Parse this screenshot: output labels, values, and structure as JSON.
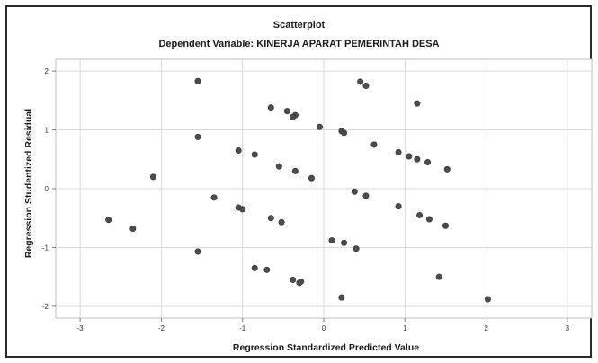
{
  "chart_data": {
    "type": "scatter",
    "title": "Scatterplot",
    "subtitle": "Dependent Variable: KINERJA APARAT PEMERINTAH DESA",
    "xlabel": "Regression Standardized Predicted Value",
    "ylabel": "Regression Studentized Residual",
    "xlim": [
      -3.3,
      3.3
    ],
    "ylim": [
      -2.2,
      2.2
    ],
    "xticks": [
      -3,
      -2,
      -1,
      0,
      1,
      2,
      3
    ],
    "yticks": [
      2,
      1,
      0,
      -1,
      -2
    ],
    "grid": true,
    "colors": {
      "point": "#4d4d4d",
      "grid": "#d9d9d9",
      "frame": "#2a2a2a",
      "plot_bg": "#ffffff"
    },
    "x": [
      -1.55,
      0.45,
      0.52,
      1.15,
      -0.65,
      -0.45,
      -0.35,
      -0.38,
      -0.05,
      0.22,
      0.25,
      -1.55,
      -1.05,
      -0.85,
      0.62,
      0.92,
      1.05,
      1.15,
      1.28,
      1.52,
      -2.1,
      -0.55,
      -0.35,
      -0.15,
      0.38,
      0.52,
      -1.35,
      -1.05,
      -1.0,
      0.92,
      -2.65,
      -2.35,
      -0.65,
      -0.52,
      1.18,
      1.3,
      1.5,
      0.1,
      0.25,
      0.4,
      -1.55,
      -0.85,
      -0.7,
      -0.38,
      -0.3,
      -0.28,
      1.42,
      0.22,
      2.02
    ],
    "y": [
      1.83,
      1.82,
      1.75,
      1.45,
      1.38,
      1.32,
      1.25,
      1.22,
      1.05,
      0.98,
      0.95,
      0.88,
      0.65,
      0.58,
      0.75,
      0.62,
      0.55,
      0.5,
      0.45,
      0.33,
      0.2,
      0.38,
      0.3,
      0.18,
      -0.05,
      -0.12,
      -0.15,
      -0.32,
      -0.35,
      -0.3,
      -0.53,
      -0.68,
      -0.5,
      -0.57,
      -0.45,
      -0.52,
      -0.63,
      -0.88,
      -0.92,
      -1.02,
      -1.07,
      -1.35,
      -1.38,
      -1.55,
      -1.6,
      -1.58,
      -1.5,
      -1.85,
      -1.88
    ]
  }
}
